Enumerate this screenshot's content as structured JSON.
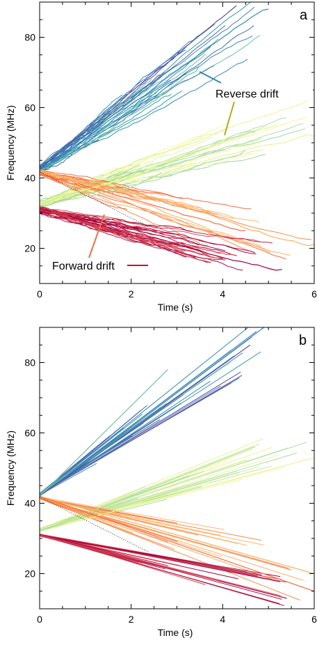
{
  "chart_data": [
    {
      "type": "line",
      "panel_label": "a",
      "xlabel": "Time (s)",
      "ylabel": "Frequency (MHz)",
      "xlim": [
        0,
        6
      ],
      "ylim": [
        10,
        90
      ],
      "xticks": [
        0,
        2,
        4,
        6
      ],
      "yticks": [
        20,
        40,
        60,
        80
      ],
      "annotations": [
        {
          "text": "Reverse drift",
          "points_to": "reverse drift bursts"
        },
        {
          "text": "Forward drift",
          "points_to": "forward drift bursts"
        }
      ],
      "series": [
        {
          "group": "reverse-high",
          "color": "#3288bd",
          "x": [
            0,
            5
          ],
          "y": [
            42,
            88
          ]
        },
        {
          "group": "reverse-high",
          "color": "#5e4fa2",
          "x": [
            0,
            4.3
          ],
          "y": [
            43,
            89
          ]
        },
        {
          "group": "reverse-high",
          "color": "#66c2a5",
          "x": [
            0,
            3.5
          ],
          "y": [
            42,
            72
          ]
        },
        {
          "group": "reverse-low",
          "color": "#e6f598",
          "x": [
            0,
            5.2
          ],
          "y": [
            32,
            55
          ]
        },
        {
          "group": "reverse-low",
          "color": "#abdda4",
          "x": [
            0,
            4.5
          ],
          "y": [
            32,
            48
          ]
        },
        {
          "group": "reverse-low",
          "color": "#e6f598",
          "x": [
            0,
            6
          ],
          "y": [
            33,
            52
          ]
        },
        {
          "group": "forward-high",
          "color": "#fdae61",
          "x": [
            0,
            6
          ],
          "y": [
            42,
            21
          ]
        },
        {
          "group": "forward-high",
          "color": "#f46d43",
          "x": [
            0,
            4.5
          ],
          "y": [
            41,
            25
          ]
        },
        {
          "group": "forward-low",
          "color": "#9e0142",
          "x": [
            0,
            5.3
          ],
          "y": [
            31,
            14
          ]
        },
        {
          "group": "forward-low",
          "color": "#d53e4f",
          "x": [
            0,
            4
          ],
          "y": [
            31,
            17
          ]
        }
      ]
    },
    {
      "type": "line",
      "panel_label": "b",
      "xlabel": "Time (s)",
      "ylabel": "Frequency (MHz)",
      "xlim": [
        0,
        6
      ],
      "ylim": [
        10,
        90
      ],
      "xticks": [
        0,
        2,
        4,
        6
      ],
      "yticks": [
        20,
        40,
        60,
        80
      ],
      "series": [
        {
          "group": "reverse-high",
          "color": "#3288bd",
          "x": [
            0,
            4.9
          ],
          "y": [
            42,
            90
          ]
        },
        {
          "group": "reverse-high",
          "color": "#5e4fa2",
          "x": [
            0,
            4.6
          ],
          "y": [
            42,
            85
          ]
        },
        {
          "group": "reverse-high",
          "color": "#66c2a5",
          "x": [
            0,
            2.8
          ],
          "y": [
            42,
            78
          ]
        },
        {
          "group": "reverse-low",
          "color": "#e6f598",
          "x": [
            0,
            6
          ],
          "y": [
            32,
            53
          ]
        },
        {
          "group": "reverse-low",
          "color": "#abdda4",
          "x": [
            0,
            4.7
          ],
          "y": [
            32,
            56
          ]
        },
        {
          "group": "forward-high",
          "color": "#fdae61",
          "x": [
            0,
            6
          ],
          "y": [
            42,
            20
          ]
        },
        {
          "group": "forward-high",
          "color": "#f46d43",
          "x": [
            0,
            6
          ],
          "y": [
            42,
            15
          ]
        },
        {
          "group": "forward-low",
          "color": "#9e0142",
          "x": [
            0,
            5.4
          ],
          "y": [
            31,
            13
          ]
        },
        {
          "group": "forward-low",
          "color": "#d53e4f",
          "x": [
            0,
            3.9
          ],
          "y": [
            31,
            18
          ]
        }
      ]
    }
  ]
}
